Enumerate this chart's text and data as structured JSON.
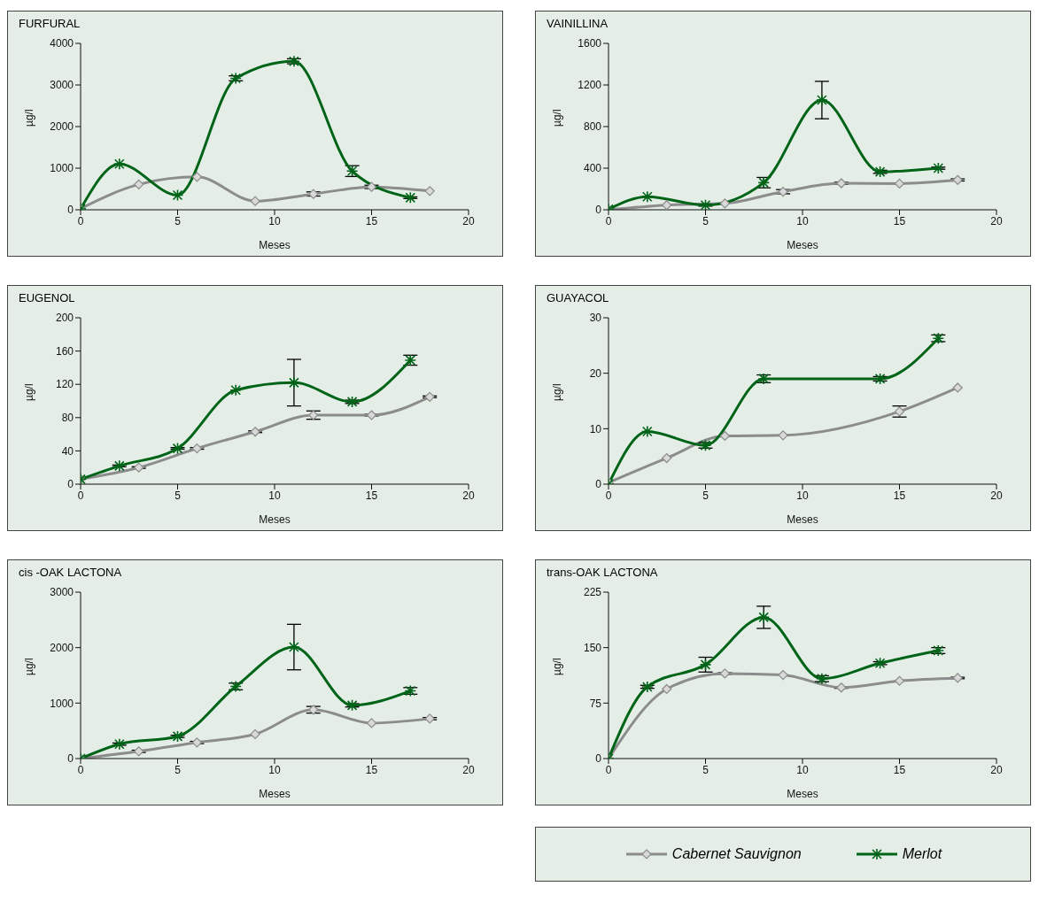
{
  "chart_data": [
    {
      "type": "line",
      "title": "FURFURAL",
      "xlabel": "Meses",
      "ylabel": "µg/l",
      "xlim": [
        0,
        20
      ],
      "xticks": [
        0,
        5,
        10,
        15,
        20
      ],
      "ylim": [
        0,
        4000
      ],
      "yticks": [
        0,
        1000,
        2000,
        3000,
        4000
      ],
      "legend": false,
      "series": [
        {
          "color": "#8c8c8c",
          "marker": "diamond",
          "x": [
            0,
            3,
            6,
            9,
            12,
            15,
            18
          ],
          "values": [
            30,
            610,
            790,
            210,
            380,
            550,
            450
          ],
          "errors": [
            null,
            null,
            null,
            null,
            50,
            40,
            null
          ]
        },
        {
          "color": "#006418",
          "marker": "cross",
          "x": [
            0,
            2,
            5,
            8,
            11,
            14,
            17
          ],
          "values": [
            20,
            1100,
            350,
            3160,
            3570,
            930,
            290
          ],
          "errors": [
            null,
            null,
            null,
            60,
            60,
            130,
            20
          ]
        }
      ]
    },
    {
      "type": "line",
      "title": "VAINILLINA",
      "xlabel": "Meses",
      "ylabel": "µg/l",
      "xlim": [
        0,
        20
      ],
      "xticks": [
        0,
        5,
        10,
        15,
        20
      ],
      "ylim": [
        0,
        1600
      ],
      "yticks": [
        0,
        400,
        800,
        1200,
        1600
      ],
      "legend": false,
      "series": [
        {
          "color": "#8c8c8c",
          "marker": "diamond",
          "x": [
            0,
            3,
            6,
            9,
            12,
            15,
            18
          ],
          "values": [
            0,
            45,
            61,
            174,
            255,
            252,
            287
          ],
          "errors": [
            null,
            null,
            null,
            20,
            10,
            null,
            10
          ]
        },
        {
          "color": "#006418",
          "marker": "cross",
          "x": [
            0,
            2,
            5,
            8,
            11,
            14,
            17
          ],
          "values": [
            5,
            126,
            45,
            261,
            1055,
            365,
            400
          ],
          "errors": [
            null,
            null,
            10,
            50,
            180,
            15,
            10
          ]
        }
      ]
    },
    {
      "type": "line",
      "title": "EUGENOL",
      "xlabel": "Meses",
      "ylabel": "µg/l",
      "xlim": [
        0,
        20
      ],
      "xticks": [
        0,
        5,
        10,
        15,
        20
      ],
      "ylim": [
        0,
        200
      ],
      "yticks": [
        0,
        40,
        80,
        120,
        160,
        200
      ],
      "legend": false,
      "series": [
        {
          "color": "#8c8c8c",
          "marker": "diamond",
          "x": [
            0,
            3,
            6,
            9,
            12,
            15,
            18
          ],
          "values": [
            6,
            20,
            43,
            63,
            83,
            83,
            105
          ],
          "errors": [
            null,
            1,
            1,
            1,
            5,
            1,
            1
          ]
        },
        {
          "color": "#006418",
          "marker": "cross",
          "x": [
            0,
            2,
            5,
            8,
            11,
            14,
            17
          ],
          "values": [
            6,
            22,
            43,
            113,
            122,
            99,
            149
          ],
          "errors": [
            null,
            1,
            1,
            null,
            28,
            2,
            6
          ]
        }
      ]
    },
    {
      "type": "line",
      "title": "GUAYACOL",
      "xlabel": "Meses",
      "ylabel": "µg/l",
      "xlim": [
        0,
        20
      ],
      "xticks": [
        0,
        5,
        10,
        15,
        20
      ],
      "ylim": [
        0,
        30
      ],
      "yticks": [
        0,
        10,
        20,
        30
      ],
      "legend": false,
      "series": [
        {
          "color": "#8c8c8c",
          "marker": "diamond",
          "x": [
            0,
            3,
            6,
            9,
            15,
            18
          ],
          "values": [
            0.3,
            4.7,
            8.7,
            8.8,
            13.1,
            17.4
          ],
          "errors": [
            null,
            null,
            null,
            null,
            1,
            null
          ]
        },
        {
          "color": "#006418",
          "marker": "cross",
          "x": [
            0,
            2,
            5,
            8,
            14,
            17
          ],
          "values": [
            0,
            9.5,
            7,
            19,
            19,
            26.3
          ],
          "errors": [
            null,
            null,
            0.5,
            0.7,
            0.4,
            0.6
          ]
        }
      ]
    },
    {
      "type": "line",
      "title": "cis -OAK LACTONA",
      "xlabel": "Meses",
      "ylabel": "µg/l",
      "xlim": [
        0,
        20
      ],
      "xticks": [
        0,
        5,
        10,
        15,
        20
      ],
      "ylim": [
        0,
        3000
      ],
      "yticks": [
        0,
        1000,
        2000,
        3000
      ],
      "legend": false,
      "series": [
        {
          "color": "#8c8c8c",
          "marker": "diamond",
          "x": [
            0,
            3,
            6,
            9,
            12,
            15,
            18
          ],
          "values": [
            0,
            130,
            290,
            440,
            880,
            640,
            720
          ],
          "errors": [
            null,
            20,
            20,
            null,
            60,
            null,
            20
          ]
        },
        {
          "color": "#006418",
          "marker": "cross",
          "x": [
            0,
            2,
            5,
            8,
            11,
            14,
            17
          ],
          "values": [
            0,
            260,
            400,
            1300,
            2010,
            960,
            1220
          ],
          "errors": [
            null,
            20,
            20,
            60,
            410,
            30,
            60
          ]
        }
      ]
    },
    {
      "type": "line",
      "title": "trans-OAK LACTONA",
      "xlabel": "Meses",
      "ylabel": "µg/l",
      "xlim": [
        0,
        20
      ],
      "xticks": [
        0,
        5,
        10,
        15,
        20
      ],
      "ylim": [
        0,
        225
      ],
      "yticks": [
        0,
        75,
        150,
        225
      ],
      "legend": "bottom",
      "series": [
        {
          "name": "Cabernet Sauvignon",
          "color": "#8c8c8c",
          "marker": "diamond",
          "x": [
            0,
            3,
            6,
            9,
            12,
            15,
            18
          ],
          "values": [
            0,
            94,
            115,
            113,
            96,
            105,
            109
          ],
          "errors": [
            null,
            null,
            1,
            null,
            1,
            null,
            1
          ]
        },
        {
          "name": "Merlot",
          "color": "#006418",
          "marker": "cross",
          "x": [
            0,
            2,
            5,
            8,
            11,
            14,
            17
          ],
          "values": [
            0,
            97,
            127,
            191,
            108,
            129,
            146
          ],
          "errors": [
            null,
            2,
            10,
            15,
            4,
            2,
            4
          ]
        }
      ]
    }
  ]
}
